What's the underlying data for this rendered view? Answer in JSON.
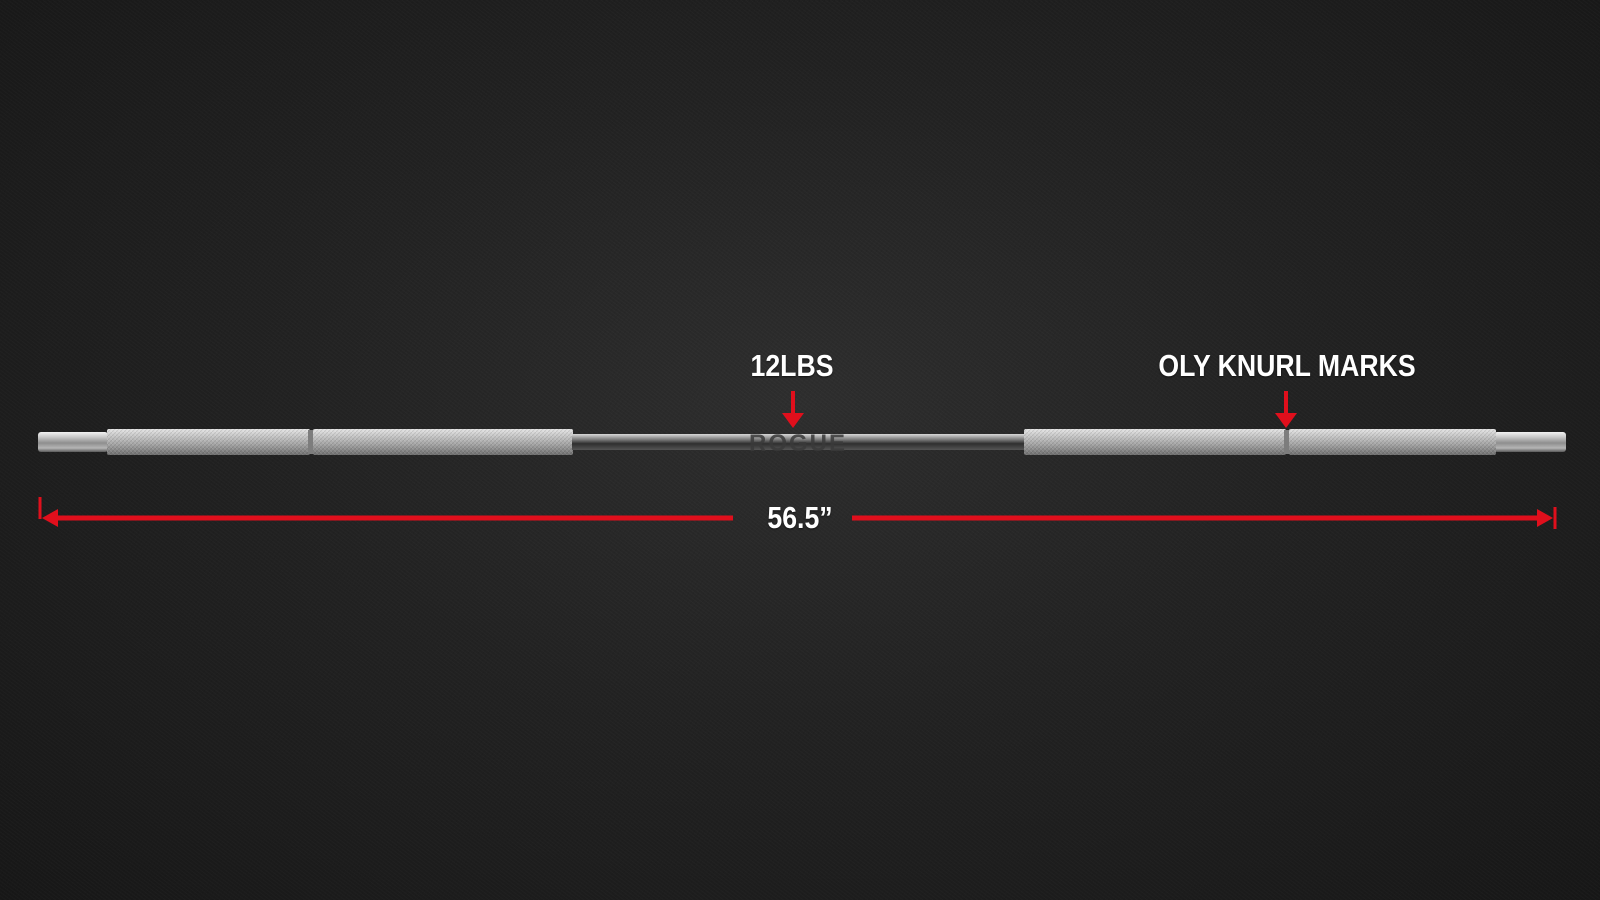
{
  "annotations": {
    "weight_label": "12LBS",
    "knurl_label": "OLY KNURL MARKS",
    "length_label": "56.5”"
  },
  "bar": {
    "brand_text": "ROGUE"
  },
  "colors": {
    "annotation": "#e00f1c",
    "background": "#252525",
    "steel": "#b8b8b8"
  }
}
